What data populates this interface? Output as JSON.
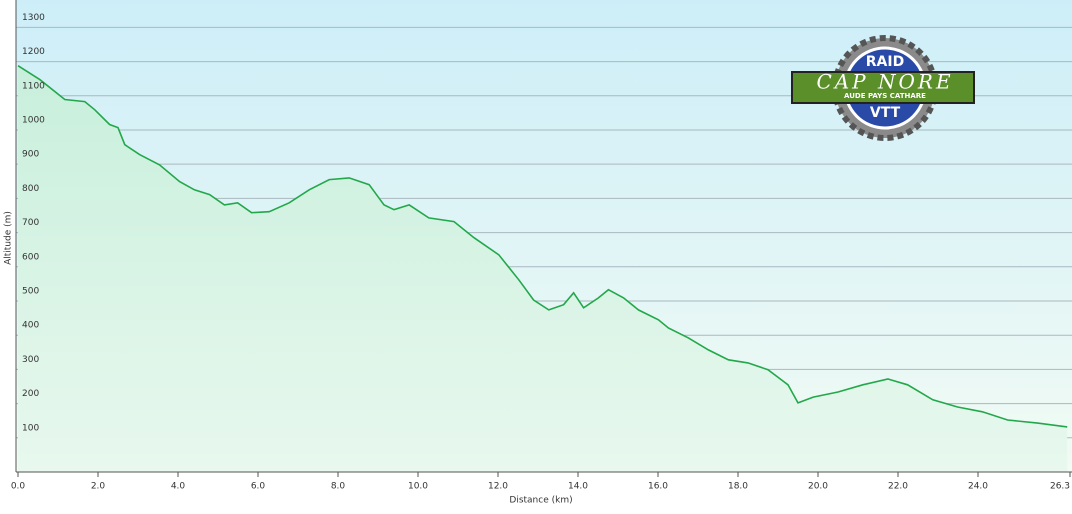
{
  "chart_data": {
    "type": "area-line",
    "xlabel": "Distance  (km)",
    "ylabel": "Altitude (m)",
    "x": [
      0,
      0.55,
      1.17,
      1.67,
      1.92,
      2.29,
      2.5,
      2.67,
      3.04,
      3.54,
      4.04,
      4.41,
      4.79,
      5.16,
      5.49,
      5.84,
      6.28,
      6.78,
      7.28,
      7.78,
      8.28,
      8.78,
      9.15,
      9.4,
      9.78,
      10.27,
      10.9,
      11.4,
      12.02,
      12.52,
      12.89,
      13.27,
      13.64,
      13.89,
      14.14,
      14.51,
      14.76,
      15.14,
      15.51,
      16.01,
      16.26,
      16.76,
      17.26,
      17.76,
      18.25,
      18.75,
      19.25,
      19.5,
      19.88,
      20.5,
      21.12,
      21.75,
      22.24,
      22.87,
      23.49,
      24.11,
      24.74,
      25.49,
      26.23
    ],
    "series": [
      {
        "name": "Altitude",
        "color": "#22a84a",
        "values": [
          1188,
          1147,
          1089,
          1083,
          1059,
          1016,
          1007,
          957,
          928,
          898,
          849,
          825,
          811,
          781,
          787,
          758,
          761,
          787,
          825,
          855,
          860,
          840,
          781,
          767,
          781,
          743,
          732,
          685,
          635,
          562,
          503,
          474,
          489,
          524,
          480,
          509,
          533,
          509,
          474,
          445,
          421,
          392,
          357,
          328,
          319,
          299,
          255,
          202,
          219,
          234,
          255,
          272,
          255,
          211,
          190,
          176,
          152,
          143,
          132
        ]
      }
    ],
    "xlim": [
      0,
      26.3
    ],
    "ylim": [
      0,
      1380
    ],
    "xticks": [
      {
        "value": 0,
        "label": "0.0"
      },
      {
        "value": 2,
        "label": "2.0"
      },
      {
        "value": 4,
        "label": "4.0"
      },
      {
        "value": 6,
        "label": "6.0"
      },
      {
        "value": 8,
        "label": "8.0"
      },
      {
        "value": 10,
        "label": "10.0"
      },
      {
        "value": 12,
        "label": "12.0"
      },
      {
        "value": 14,
        "label": "14.0"
      },
      {
        "value": 16,
        "label": "16.0"
      },
      {
        "value": 18,
        "label": "18.0"
      },
      {
        "value": 20,
        "label": "20.0"
      },
      {
        "value": 22,
        "label": "22.0"
      },
      {
        "value": 24,
        "label": "24.0"
      },
      26.3
    ],
    "yticks": [
      100,
      200,
      300,
      400,
      500,
      600,
      700,
      800,
      900,
      1000,
      1100,
      1200,
      1300
    ],
    "grid": true
  },
  "logo": {
    "top": "RAID",
    "name": "CAP NORE",
    "region": "AUDE PAYS CATHARE",
    "bottom": "VTT"
  }
}
